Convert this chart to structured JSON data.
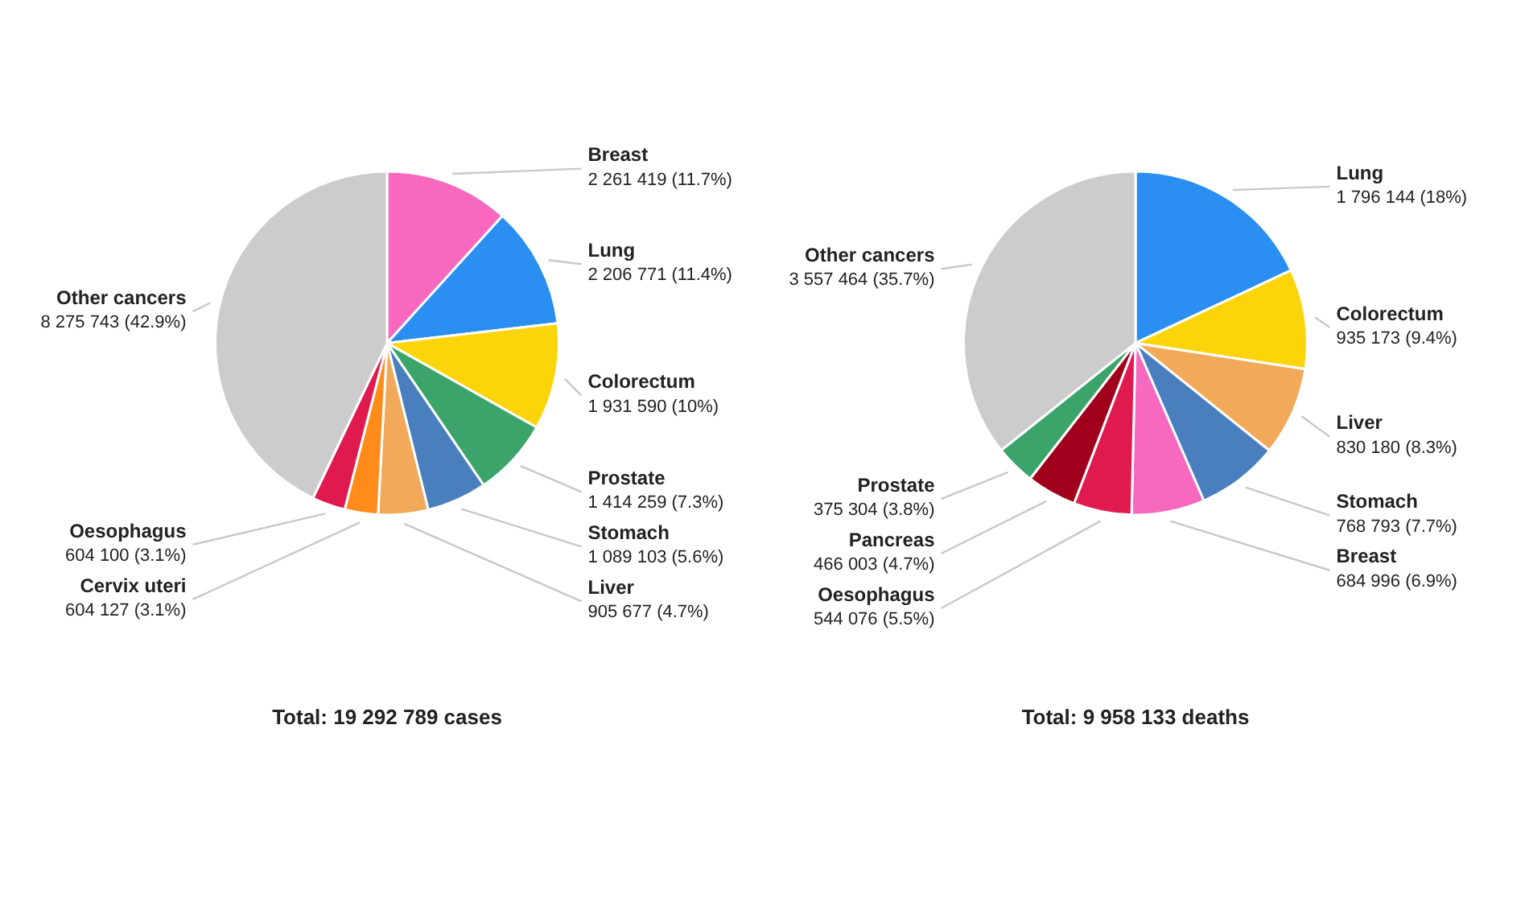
{
  "chart_data": [
    {
      "type": "pie",
      "title": "Total: 19 292 789 cases",
      "categories": [
        "Breast",
        "Lung",
        "Colorectum",
        "Prostate",
        "Stomach",
        "Liver",
        "Cervix uteri",
        "Oesophagus",
        "Other cancers"
      ],
      "values": [
        2261419,
        2206771,
        1931590,
        1414259,
        1089103,
        905677,
        604127,
        604100,
        8275743
      ],
      "value_labels": [
        "2 261 419 (11.7%)",
        "2 206 771 (11.4%)",
        "1 931 590 (10%)",
        "1 414 259 (7.3%)",
        "1 089 103 (5.6%)",
        "905 677 (4.7%)",
        "604 127 (3.1%)",
        "604 100 (3.1%)",
        "8 275 743 (42.9%)"
      ],
      "colors": [
        "#f768be",
        "#2a8ff0",
        "#fcd40a",
        "#3aa46a",
        "#4a7fbf",
        "#f2a95a",
        "#ff8c1a",
        "#e0194f",
        "#cccccc"
      ]
    },
    {
      "type": "pie",
      "title": "Total: 9 958 133 deaths",
      "categories": [
        "Lung",
        "Colorectum",
        "Liver",
        "Stomach",
        "Breast",
        "Oesophagus",
        "Pancreas",
        "Prostate",
        "Other cancers"
      ],
      "values": [
        1796144,
        935173,
        830180,
        768793,
        684996,
        544076,
        466003,
        375304,
        3557464
      ],
      "value_labels": [
        "1 796 144 (18%)",
        "935 173 (9.4%)",
        "830 180 (8.3%)",
        "768 793 (7.7%)",
        "684 996 (6.9%)",
        "544 076 (5.5%)",
        "466 003 (4.7%)",
        "375 304 (3.8%)",
        "3 557 464 (35.7%)"
      ],
      "colors": [
        "#2a8ff0",
        "#fcd40a",
        "#f2a95a",
        "#4a7fbf",
        "#f768be",
        "#e0194f",
        "#a0001c",
        "#3aa46a",
        "#cccccc"
      ]
    }
  ]
}
